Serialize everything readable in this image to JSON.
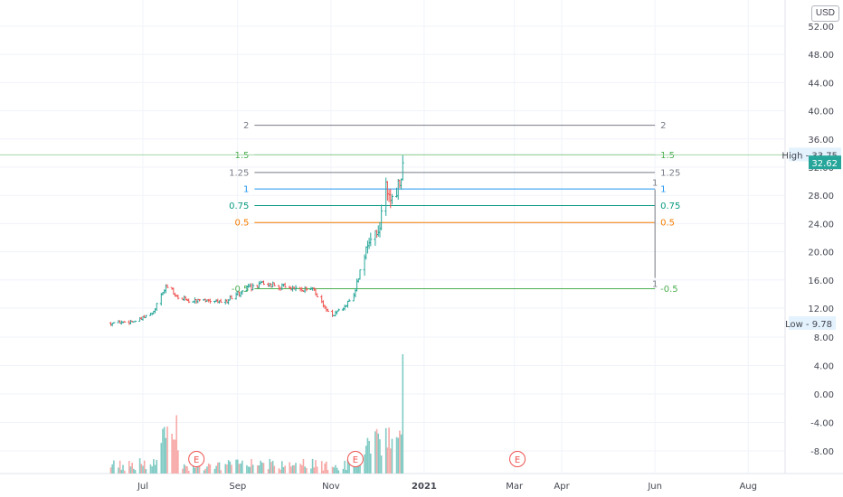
{
  "currency": "USD",
  "chart_data": {
    "type": "bar",
    "y_ticks": [
      "52.00",
      "48.00",
      "44.00",
      "40.00",
      "36.00",
      "32.00",
      "28.00",
      "24.00",
      "20.00",
      "16.00",
      "12.00",
      "8.00",
      "4.00",
      "0.00",
      "-4.00",
      "-8.00"
    ],
    "x_ticks": [
      {
        "label": "Jul",
        "date": "2020-07-01"
      },
      {
        "label": "Sep",
        "date": "2020-09-01"
      },
      {
        "label": "Nov",
        "date": "2020-11-01"
      },
      {
        "label": "2021",
        "date": "2021-01-01"
      },
      {
        "label": "Mar",
        "date": "2021-03-01"
      },
      {
        "label": "Apr",
        "date": "2021-04-01"
      },
      {
        "label": "Jun",
        "date": "2021-06-01"
      },
      {
        "label": "Aug",
        "date": "2021-08-01"
      }
    ],
    "high_label": {
      "text": "High - 33.75",
      "value": 33.75
    },
    "last_price": {
      "text": "32.62",
      "value": 32.62
    },
    "low_label": {
      "text": "Low - 9.78",
      "value": 9.78
    },
    "fib_levels": [
      {
        "label": "2",
        "value": 37.95,
        "color": "#787b86"
      },
      {
        "label": "1.5",
        "value": 33.75,
        "color": "#4caf50"
      },
      {
        "label": "1.25",
        "value": 31.25,
        "color": "#787b86"
      },
      {
        "label": "1",
        "value": 28.9,
        "color": "#2196f3"
      },
      {
        "label": "0.75",
        "value": 26.55,
        "color": "#089981"
      },
      {
        "label": "0.5",
        "value": 24.15,
        "color": "#f57c00"
      },
      {
        "label": "-0.5",
        "value": 14.75,
        "color": "#4caf50"
      }
    ],
    "fib_start_date": "2020-09-12",
    "fib_end_date": "2021-06-01",
    "fib_markers": [
      {
        "label": "1",
        "value": 29.6
      },
      {
        "label": "1",
        "value": 16.8
      }
    ],
    "earnings_markers": [
      {
        "label": "E",
        "date": "2020-08-05"
      },
      {
        "label": "E",
        "date": "2020-11-17"
      },
      {
        "label": "E",
        "date": "2021-03-03"
      }
    ],
    "colors": {
      "up": "#26a69a",
      "down": "#ef5350",
      "up_volume": "#80cbc4",
      "down_volume": "#f7a9a7"
    }
  }
}
